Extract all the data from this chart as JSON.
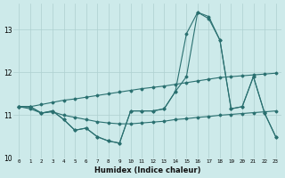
{
  "xlabel": "Humidex (Indice chaleur)",
  "bg_color": "#cdeaea",
  "grid_color": "#aed0d0",
  "line_color": "#2a7070",
  "xlim": [
    -0.5,
    23.5
  ],
  "ylim": [
    10.0,
    13.6
  ],
  "yticks": [
    10,
    11,
    12,
    13
  ],
  "xticks": [
    0,
    1,
    2,
    3,
    4,
    5,
    6,
    7,
    8,
    9,
    10,
    11,
    12,
    13,
    14,
    15,
    16,
    17,
    18,
    19,
    20,
    21,
    22,
    23
  ],
  "line1_x": [
    0,
    1,
    2,
    3,
    4,
    5,
    6,
    7,
    8,
    9,
    10,
    11,
    12,
    13,
    14,
    15,
    16,
    17,
    18,
    19,
    20,
    21,
    22,
    23
  ],
  "line1_y": [
    11.2,
    11.2,
    11.05,
    11.1,
    10.9,
    10.65,
    10.7,
    10.5,
    10.4,
    10.35,
    11.1,
    11.1,
    11.1,
    11.15,
    11.55,
    11.9,
    13.4,
    13.3,
    12.75,
    11.15,
    11.2,
    11.9,
    11.05,
    10.5
  ],
  "line2_x": [
    0,
    1,
    2,
    3,
    4,
    5,
    6,
    7,
    8,
    9,
    10,
    11,
    12,
    13,
    14,
    15,
    16,
    17,
    18,
    19,
    20,
    21,
    22,
    23
  ],
  "line2_y": [
    11.2,
    11.2,
    11.05,
    11.1,
    10.9,
    10.65,
    10.7,
    10.5,
    10.4,
    10.35,
    11.1,
    11.1,
    11.1,
    11.15,
    11.55,
    12.9,
    13.4,
    13.25,
    12.75,
    11.15,
    11.2,
    11.9,
    11.05,
    10.5
  ],
  "line3_x": [
    0,
    1,
    2,
    3,
    4,
    5,
    6,
    7,
    8,
    9,
    10,
    11,
    12,
    13,
    14,
    15,
    16,
    17,
    18,
    19,
    20,
    21,
    22,
    23
  ],
  "line3_y": [
    11.2,
    11.15,
    11.05,
    11.08,
    11.0,
    10.95,
    10.9,
    10.85,
    10.82,
    10.8,
    10.8,
    10.82,
    10.84,
    10.86,
    10.9,
    10.92,
    10.95,
    10.97,
    11.0,
    11.02,
    11.04,
    11.06,
    11.08,
    11.1
  ],
  "line4_x": [
    0,
    1,
    2,
    3,
    4,
    5,
    6,
    7,
    8,
    9,
    10,
    11,
    12,
    13,
    14,
    15,
    16,
    17,
    18,
    19,
    20,
    21,
    22,
    23
  ],
  "line4_y": [
    11.2,
    11.2,
    11.25,
    11.3,
    11.35,
    11.38,
    11.42,
    11.46,
    11.5,
    11.54,
    11.58,
    11.62,
    11.65,
    11.68,
    11.72,
    11.76,
    11.8,
    11.84,
    11.88,
    11.9,
    11.92,
    11.94,
    11.96,
    11.98
  ],
  "linewidth": 0.8,
  "markersize": 1.5
}
